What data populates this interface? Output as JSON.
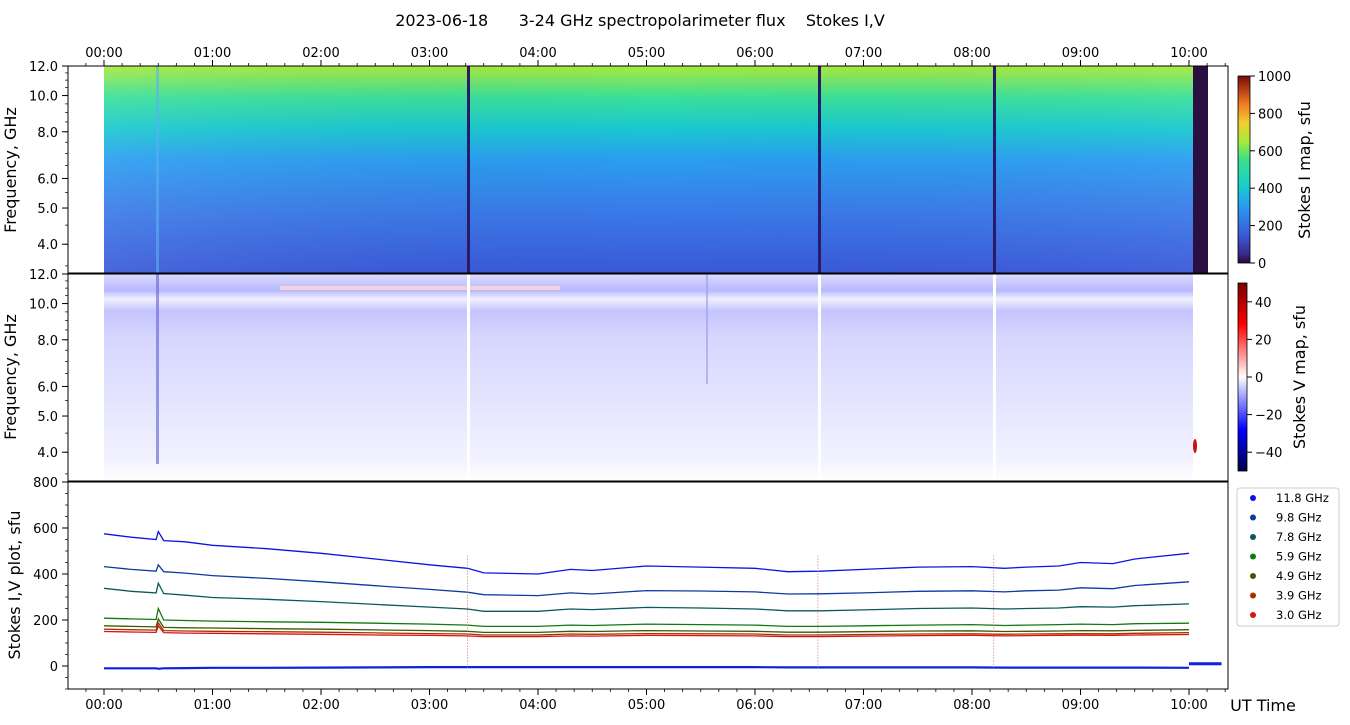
{
  "title": "2023-06-18      3-24 GHz spectropolarimeter flux    Stokes I,V",
  "time_ticks": [
    "00:00",
    "01:00",
    "02:00",
    "03:00",
    "04:00",
    "05:00",
    "06:00",
    "07:00",
    "08:00",
    "09:00",
    "10:00"
  ],
  "xlabel": "UT Time",
  "panels": {
    "stokes_i_map": {
      "ylabel": "Frequency, GHz",
      "yticks": [
        "4.0",
        "5.0",
        "6.0",
        "8.0",
        "10.0",
        "12.0"
      ],
      "colorbar_label": "Stokes I map, sfu",
      "colorbar_ticks": [
        "0",
        "200",
        "400",
        "600",
        "800",
        "1000"
      ],
      "colormap": "rainbow-like (purple-blue-cyan-green-yellow-red)"
    },
    "stokes_v_map": {
      "ylabel": "Frequency, GHz",
      "yticks": [
        "4.0",
        "5.0",
        "6.0",
        "8.0",
        "10.0",
        "12.0"
      ],
      "colorbar_label": "Stokes V map, sfu",
      "colorbar_ticks": [
        "−40",
        "−20",
        "0",
        "20",
        "40"
      ],
      "colormap": "seismic (blue-white-red)"
    },
    "stokes_plot": {
      "ylabel": "Stokes I,V plot, sfu",
      "yticks": [
        "0",
        "200",
        "400",
        "600",
        "800"
      ]
    }
  },
  "legend": {
    "placement": "upper right, outside plot",
    "items": [
      {
        "label": "11.8 GHz",
        "color": "#0b14e6"
      },
      {
        "label": "9.8 GHz",
        "color": "#0c3aa3"
      },
      {
        "label": "7.8 GHz",
        "color": "#0b5a5a"
      },
      {
        "label": "5.9 GHz",
        "color": "#107a10"
      },
      {
        "label": "4.9 GHz",
        "color": "#3d5a00"
      },
      {
        "label": "3.9 GHz",
        "color": "#a83000"
      },
      {
        "label": "3.0 GHz",
        "color": "#e01010"
      }
    ]
  },
  "chart_data": {
    "type": "line",
    "title": "2023-06-18      3-24 GHz spectropolarimeter flux    Stokes I,V",
    "xlabel": "UT Time",
    "ylabel": "Stokes I,V plot, sfu",
    "xlim": [
      -0.33,
      10.33
    ],
    "ylim": [
      -100,
      800
    ],
    "x": [
      0.0,
      0.25,
      0.48,
      0.5,
      0.55,
      0.75,
      1.0,
      1.5,
      2.0,
      2.5,
      3.0,
      3.35,
      3.5,
      4.0,
      4.3,
      4.5,
      5.0,
      5.5,
      6.0,
      6.3,
      6.6,
      7.0,
      7.5,
      8.0,
      8.3,
      8.5,
      8.8,
      9.0,
      9.3,
      9.5,
      10.0
    ],
    "series": [
      {
        "name": "11.8 GHz",
        "values": [
          575,
          560,
          550,
          585,
          545,
          540,
          525,
          510,
          490,
          465,
          440,
          425,
          405,
          400,
          420,
          415,
          435,
          430,
          425,
          410,
          412,
          420,
          430,
          432,
          425,
          430,
          435,
          450,
          445,
          465,
          490
        ]
      },
      {
        "name": "9.8 GHz",
        "values": [
          432,
          420,
          412,
          440,
          410,
          404,
          393,
          381,
          366,
          349,
          333,
          321,
          310,
          306,
          318,
          313,
          328,
          326,
          322,
          313,
          314,
          318,
          325,
          327,
          322,
          327,
          330,
          340,
          336,
          350,
          366
        ]
      },
      {
        "name": "7.8 GHz",
        "values": [
          338,
          325,
          318,
          360,
          315,
          308,
          298,
          290,
          280,
          268,
          256,
          248,
          238,
          238,
          248,
          245,
          255,
          252,
          248,
          240,
          240,
          244,
          250,
          252,
          248,
          250,
          252,
          258,
          256,
          262,
          270
        ]
      },
      {
        "name": "5.9 GHz",
        "values": [
          208,
          205,
          202,
          250,
          200,
          198,
          195,
          192,
          190,
          186,
          182,
          178,
          172,
          172,
          178,
          176,
          182,
          180,
          178,
          172,
          172,
          175,
          178,
          180,
          176,
          178,
          180,
          182,
          180,
          184,
          186
        ]
      },
      {
        "name": "4.9 GHz",
        "values": [
          175,
          172,
          170,
          205,
          168,
          166,
          165,
          162,
          160,
          157,
          154,
          151,
          146,
          146,
          151,
          150,
          154,
          152,
          151,
          147,
          147,
          149,
          152,
          153,
          150,
          151,
          152,
          154,
          153,
          155,
          158
        ]
      },
      {
        "name": "3.9 GHz",
        "values": [
          160,
          158,
          156,
          188,
          154,
          152,
          151,
          149,
          147,
          144,
          141,
          139,
          135,
          135,
          139,
          138,
          141,
          140,
          139,
          135,
          135,
          137,
          139,
          140,
          138,
          139,
          140,
          141,
          140,
          142,
          145
        ]
      },
      {
        "name": "3.0 GHz",
        "values": [
          150,
          148,
          146,
          175,
          145,
          143,
          142,
          140,
          138,
          135,
          133,
          131,
          128,
          128,
          131,
          130,
          133,
          132,
          131,
          128,
          128,
          130,
          132,
          133,
          131,
          132,
          133,
          134,
          133,
          135,
          137
        ]
      },
      {
        "name": "Stokes V",
        "values": [
          -10,
          -10,
          -10,
          -12,
          -10,
          -9,
          -8,
          -8,
          -7,
          -6,
          -5,
          -5,
          -5,
          -5,
          -5,
          -5,
          -5,
          -5,
          -5,
          -6,
          -6,
          -6,
          -6,
          -6,
          -7,
          -7,
          -7,
          -7,
          -7,
          -7,
          -8
        ]
      }
    ],
    "data_gaps_hours": [
      3.35,
      6.58,
      8.2
    ],
    "flare_hours": 0.5
  }
}
